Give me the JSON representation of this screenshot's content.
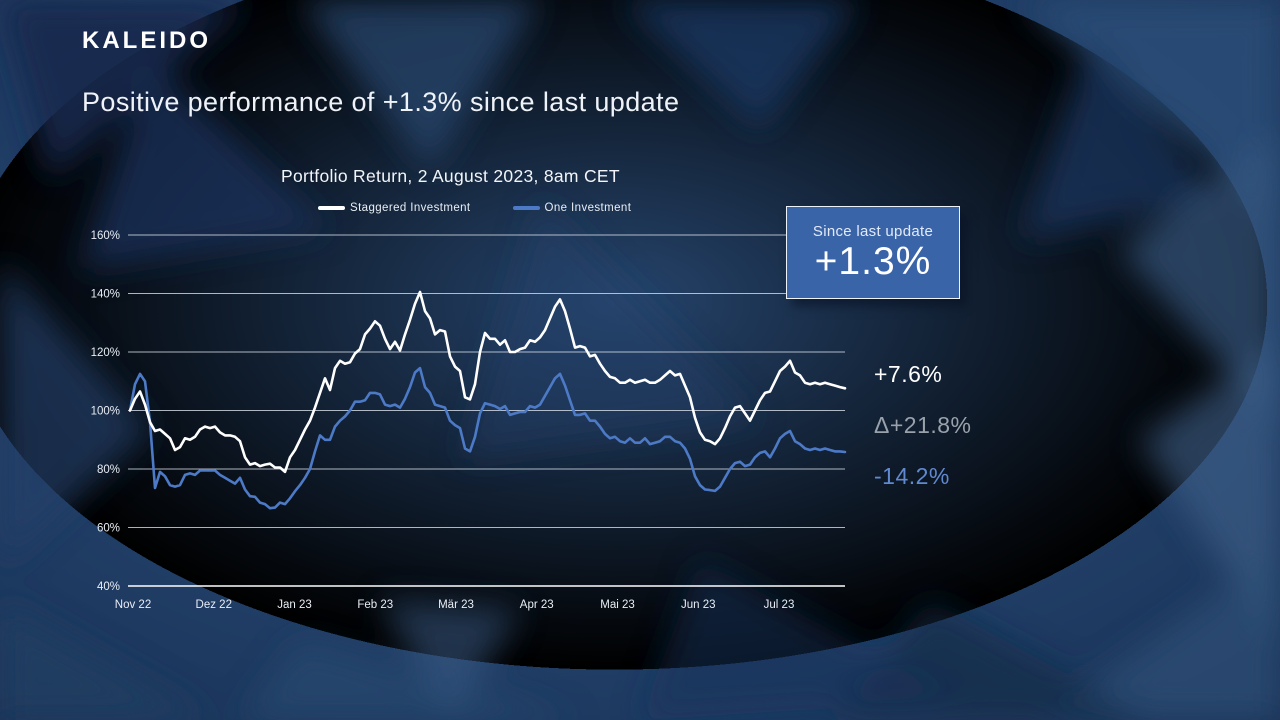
{
  "brand": {
    "logo_text": "KALEIDO"
  },
  "header": {
    "title": "Positive performance of +1.3% since last update"
  },
  "chart": {
    "title": "Portfolio Return, 2 August 2023, 8am CET"
  },
  "callout": {
    "label": "Since last update",
    "value": "+1.3%"
  },
  "stats": [
    {
      "id": "staggered-investment-return",
      "value": "+7.6%",
      "color": "#ffffff"
    },
    {
      "id": "delta-between-strategies",
      "value": "Δ+21.8%",
      "color": "#99a1ab"
    },
    {
      "id": "one-investment-return",
      "value": "-14.2%",
      "color": "#6089cf"
    }
  ],
  "colors": {
    "background": "#1e3a61",
    "accent_blue": "#4d7ac6",
    "callout_bg": "#3a64a8",
    "gridline": "#d7dfe9",
    "axis_text": "#e9eef5"
  },
  "chart_data": {
    "type": "line",
    "title": "Portfolio Return, 2 August 2023, 8am CET",
    "x_tick_labels": [
      "Nov 22",
      "Dez 22",
      "Jan 23",
      "Feb 23",
      "Mär 23",
      "Apr 23",
      "Mai 23",
      "Jun 23",
      "Jul 23"
    ],
    "y_ticks": [
      40,
      60,
      80,
      100,
      120,
      140,
      160
    ],
    "y_unit": "%",
    "ylim": [
      40,
      160
    ],
    "grid": true,
    "legend_position": "top",
    "series": [
      {
        "name": "Staggered Investment",
        "color": "#ffffff",
        "values": [
          100,
          104,
          106.5,
          102,
          96,
          93,
          93.5,
          92,
          90.5,
          86.5,
          87.5,
          90.5,
          90,
          91,
          93.5,
          94.5,
          94,
          94.5,
          92.5,
          91.5,
          91.5,
          91,
          89.5,
          84,
          81.5,
          82,
          81,
          81.5,
          81.8,
          80.5,
          80.5,
          79,
          84,
          86.5,
          90,
          93.5,
          96.5,
          101,
          106,
          111,
          107,
          114.5,
          117,
          116,
          116.5,
          119.5,
          121,
          126,
          128,
          130.5,
          129,
          124.5,
          121,
          123.5,
          120.5,
          126,
          131,
          136.5,
          140.5,
          134,
          131.5,
          126,
          127.5,
          127,
          118.5,
          115,
          113.5,
          104.5,
          103.8,
          109,
          120,
          126.5,
          124.5,
          124.5,
          122.5,
          124,
          120,
          120,
          121,
          121.5,
          124,
          123.5,
          125,
          127.5,
          131.5,
          135.5,
          138,
          134,
          128,
          121.5,
          122,
          121.5,
          118.5,
          119,
          116,
          113.5,
          111.5,
          111,
          109.5,
          109.5,
          110.5,
          109.5,
          110,
          110.5,
          109.5,
          109.5,
          110.5,
          112,
          113.5,
          112,
          112.5,
          108.5,
          104.5,
          97.5,
          92.5,
          90,
          89.5,
          88.5,
          90.5,
          94,
          98,
          101,
          101.5,
          99,
          96.5,
          100,
          103.5,
          106,
          106.5,
          110,
          113.5,
          115,
          117,
          113,
          112,
          109.5,
          109,
          109.5,
          109,
          109.5,
          109,
          108.5,
          108,
          107.6
        ]
      },
      {
        "name": "One Investment",
        "color": "#4d7ac6",
        "values": [
          100,
          109,
          112.5,
          110,
          96,
          73.5,
          79,
          77.5,
          74.5,
          74,
          74.5,
          78,
          78.5,
          78,
          79.5,
          79.5,
          79.5,
          79.5,
          78,
          77,
          76,
          75,
          77,
          73,
          70.7,
          70.5,
          68.5,
          68,
          66.6,
          66.8,
          68.5,
          68,
          70,
          72.4,
          74.5,
          77,
          80,
          86,
          91.5,
          90,
          90,
          94.5,
          96.5,
          98,
          100,
          103,
          103,
          103.5,
          106,
          106,
          105.5,
          102,
          101.5,
          102,
          101,
          104,
          108,
          113,
          114.5,
          108,
          106,
          102,
          101.5,
          101,
          96.5,
          95,
          94,
          87,
          86,
          91,
          99,
          102.5,
          102,
          101.5,
          100.5,
          101.5,
          98.5,
          99,
          99.5,
          99.5,
          101.5,
          101,
          102,
          105,
          108,
          111,
          112.5,
          108.5,
          103.5,
          98.5,
          98.5,
          99,
          96.5,
          96.5,
          94.5,
          92,
          90.5,
          91,
          89.5,
          89,
          90.5,
          89,
          89,
          90.5,
          88.5,
          89,
          89.5,
          91,
          91,
          89.5,
          89,
          87,
          83.5,
          77.5,
          74.5,
          73,
          72.8,
          72.5,
          74,
          77,
          80,
          82,
          82.5,
          81,
          81.5,
          84,
          85.5,
          86,
          84,
          87,
          90.5,
          92,
          93,
          89.5,
          88.5,
          87,
          86.5,
          87,
          86.5,
          87,
          86.5,
          86,
          86,
          85.8
        ]
      }
    ]
  }
}
